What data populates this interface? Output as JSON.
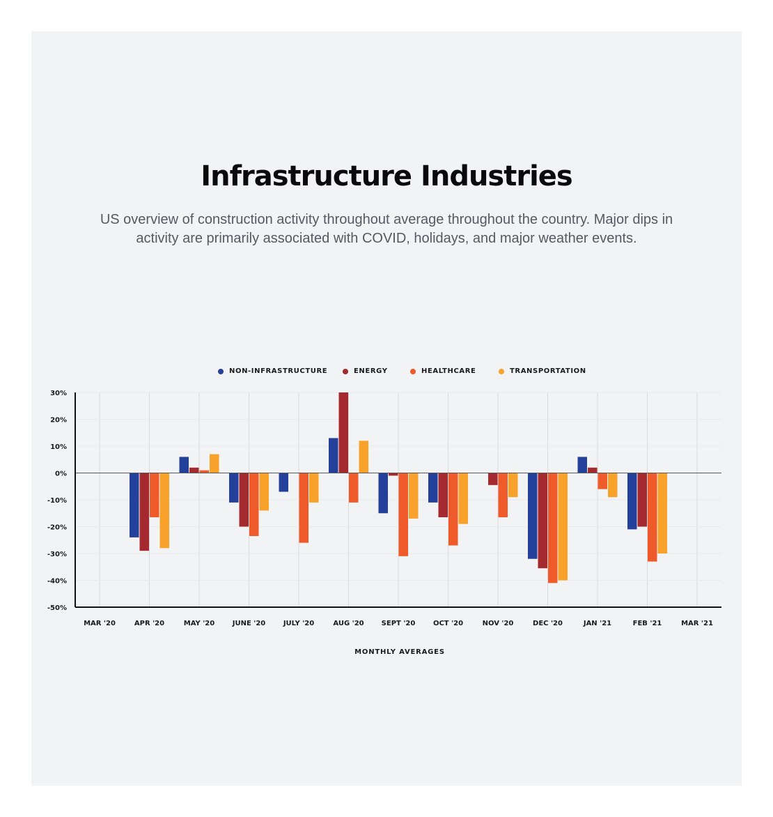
{
  "header": {
    "title": "Infrastructure Industries",
    "subtitle": "US overview of construction activity throughout average throughout the country. Major dips in activity are primarily associated with COVID,  holidays, and major weather events."
  },
  "legend": [
    {
      "label": "NON-INFRASTRUCTURE",
      "color": "#23409a"
    },
    {
      "label": "ENERGY",
      "color": "#a52a2f"
    },
    {
      "label": "HEALTHCARE",
      "color": "#ee5a2a"
    },
    {
      "label": "TRANSPORTATION",
      "color": "#f9a22b"
    }
  ],
  "chart_data": {
    "type": "bar",
    "title": "Infrastructure Industries",
    "xlabel": "MONTHLY AVERAGES",
    "ylabel": "",
    "ylim": [
      -50,
      30
    ],
    "yticks": [
      30,
      20,
      10,
      0,
      -10,
      -20,
      -30,
      -40,
      -50
    ],
    "ytick_labels": [
      "30%",
      "20%",
      "10%",
      "0%",
      "-10%",
      "-20%",
      "-30%",
      "-40%",
      "-50%"
    ],
    "grid": true,
    "legend_position": "top-center",
    "categories": [
      "MAR '20",
      "APR '20",
      "MAY '20",
      "JUNE '20",
      "JULY '20",
      "AUG '20",
      "SEPT '20",
      "OCT '20",
      "NOV '20",
      "DEC '20",
      "JAN '21",
      "FEB '21",
      "MAR '21"
    ],
    "series": [
      {
        "name": "NON-INFRASTRUCTURE",
        "color": "#23409a",
        "values": [
          0,
          -24,
          6,
          -11,
          -7,
          13,
          -15,
          -11,
          0,
          -32,
          6,
          -21,
          0
        ]
      },
      {
        "name": "ENERGY",
        "color": "#a52a2f",
        "values": [
          0,
          -29,
          2,
          -20,
          0,
          30,
          -1,
          -16.5,
          -4.5,
          -35.5,
          2,
          -20,
          0
        ]
      },
      {
        "name": "HEALTHCARE",
        "color": "#ee5a2a",
        "values": [
          0,
          -16.5,
          1,
          -23.5,
          -26,
          -11,
          -31,
          -27,
          -16.5,
          -41,
          -6,
          -33,
          0
        ]
      },
      {
        "name": "TRANSPORTATION",
        "color": "#f9a22b",
        "values": [
          0,
          -28,
          7,
          -14,
          -11,
          12,
          -17,
          -19,
          -9,
          -40,
          -9,
          -30,
          0
        ]
      }
    ]
  }
}
